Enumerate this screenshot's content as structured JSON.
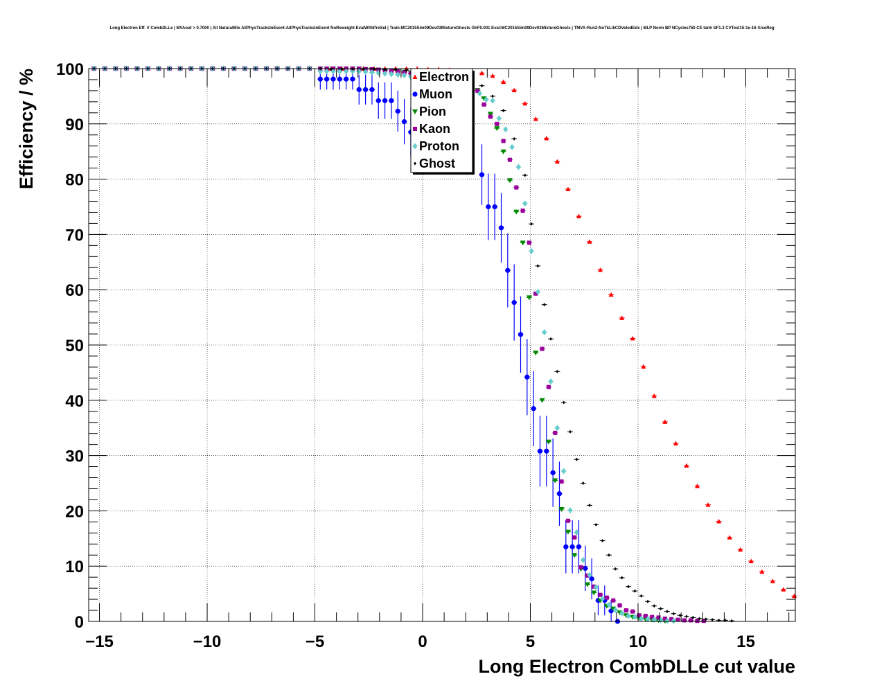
{
  "chart_data": {
    "type": "scatter",
    "title": "Long Electron Eff. V CombDLLe | MVAout > 0.7000 | All NaturalMix AllPhysTracksInEvent:AllPhysTracksInEvent NoReweight EvalWithPreSel | Train:MC2015Sim09Dev03MixtureGhosts GhF0.001 Eval:MC2015Sim09Dev03MixtureGhosts | TMVA-Run2-NoTkLikCDVelodEdx | MLP Norm BP NCycles750 CE tanh SF1.3 CVTest15:1e-16 !UseReg",
    "xlabel": "Long Electron CombDLLe cut value",
    "ylabel": "Efficiency / %",
    "xlim": [
      -15.5,
      17.3
    ],
    "ylim": [
      0,
      100
    ],
    "xticks": [
      -15,
      -10,
      -5,
      0,
      5,
      10,
      15
    ],
    "xtick_labels": [
      "−15",
      "−10",
      "−5",
      "0",
      "5",
      "10",
      "15"
    ],
    "yticks": [
      0,
      10,
      20,
      30,
      40,
      50,
      60,
      70,
      80,
      90,
      100
    ],
    "ytick_labels": [
      "0",
      "10",
      "20",
      "30",
      "40",
      "50",
      "60",
      "70",
      "80",
      "90",
      "100"
    ],
    "grid": true,
    "legend_position": "top-center",
    "series": [
      {
        "name": "Electron",
        "color": "#ff0000",
        "marker": "triangle-up",
        "x": [
          -15.25,
          -14.75,
          -14.25,
          -13.75,
          -13.25,
          -12.75,
          -12.25,
          -11.75,
          -11.25,
          -10.75,
          -10.25,
          -9.75,
          -9.25,
          -8.75,
          -8.25,
          -7.75,
          -7.25,
          -6.75,
          -6.25,
          -5.75,
          -5.25,
          -4.75,
          -4.25,
          -3.75,
          -3.25,
          -2.75,
          -2.25,
          -1.75,
          -1.25,
          -0.75,
          -0.25,
          0.25,
          0.75,
          1.25,
          1.75,
          2.25,
          2.75,
          3.25,
          3.75,
          4.25,
          4.75,
          5.25,
          5.75,
          6.25,
          6.75,
          7.25,
          7.75,
          8.25,
          8.75,
          9.25,
          9.75,
          10.25,
          10.75,
          11.25,
          11.75,
          12.25,
          12.75,
          13.25,
          13.75,
          14.25,
          14.75,
          15.25,
          15.75,
          16.25,
          16.75,
          17.25
        ],
        "y": [
          100,
          100,
          100,
          100,
          100,
          100,
          100,
          100,
          100,
          100,
          100,
          100,
          100,
          100,
          100,
          100,
          100,
          100,
          100,
          100,
          100,
          100,
          100,
          100,
          100,
          100,
          100,
          100,
          100,
          100,
          100,
          99.9,
          99.9,
          99.8,
          99.7,
          99.5,
          99.2,
          98.7,
          97.6,
          96.1,
          93.7,
          90.9,
          87.4,
          83.2,
          78.2,
          73.3,
          68.7,
          63.6,
          59.1,
          54.9,
          51.2,
          46.1,
          40.8,
          36.1,
          32.2,
          28.2,
          24.5,
          21.1,
          18.1,
          15.2,
          13.0,
          10.9,
          9.0,
          7.3,
          5.8,
          4.6
        ]
      },
      {
        "name": "Muon",
        "color": "#0000ff",
        "marker": "circle",
        "x": [
          -15.25,
          -14.75,
          -14.25,
          -13.75,
          -13.25,
          -12.75,
          -12.25,
          -11.75,
          -11.25,
          -10.75,
          -10.25,
          -9.75,
          -9.25,
          -8.75,
          -8.25,
          -7.75,
          -7.25,
          -6.75,
          -6.25,
          -5.75,
          -5.25,
          -4.75,
          -4.45,
          -4.15,
          -3.85,
          -3.55,
          -3.25,
          -2.95,
          -2.65,
          -2.35,
          -2.05,
          -1.75,
          -1.45,
          -1.15,
          -0.85,
          -0.55,
          2.75,
          3.05,
          3.35,
          3.65,
          3.95,
          4.25,
          4.55,
          4.85,
          5.15,
          5.45,
          5.75,
          6.05,
          6.35,
          6.65,
          6.95,
          7.25,
          7.55,
          7.85,
          8.15,
          8.45,
          8.75,
          9.05
        ],
        "y": [
          100,
          100,
          100,
          100,
          100,
          100,
          100,
          100,
          100,
          100,
          100,
          100,
          100,
          100,
          100,
          100,
          100,
          100,
          100,
          100,
          100,
          98.1,
          98.1,
          98.1,
          98.1,
          98.1,
          98.1,
          96.2,
          96.2,
          96.2,
          94.2,
          94.2,
          94.2,
          92.3,
          90.4,
          88.5,
          80.8,
          75.0,
          75.0,
          71.2,
          63.5,
          57.7,
          51.9,
          44.2,
          38.5,
          30.8,
          30.8,
          26.9,
          23.1,
          13.5,
          13.5,
          13.5,
          9.6,
          7.7,
          3.8,
          3.8,
          1.9,
          0.0
        ],
        "yerr": [
          0,
          0,
          0,
          0,
          0,
          0,
          0,
          0,
          0,
          0,
          0,
          0,
          0,
          0,
          0,
          0,
          0,
          0,
          0,
          0,
          0,
          1.9,
          1.9,
          1.9,
          1.9,
          1.9,
          1.9,
          2.7,
          2.7,
          2.7,
          3.3,
          3.3,
          3.3,
          3.7,
          4.1,
          4.4,
          5.5,
          6.0,
          6.0,
          6.3,
          6.7,
          6.9,
          6.9,
          6.9,
          6.8,
          6.4,
          6.4,
          6.2,
          5.8,
          4.8,
          4.8,
          4.8,
          4.1,
          3.7,
          2.7,
          2.7,
          1.9,
          0.0
        ]
      },
      {
        "name": "Pion",
        "color": "#008800",
        "marker": "triangle-down",
        "x": [
          -15.25,
          -14.75,
          -14.25,
          -13.75,
          -13.25,
          -12.75,
          -12.25,
          -11.75,
          -11.25,
          -10.75,
          -10.25,
          -9.75,
          -9.25,
          -8.75,
          -8.25,
          -7.75,
          -7.25,
          -6.75,
          -6.25,
          -5.75,
          -5.25,
          -4.75,
          -4.45,
          -4.15,
          -3.85,
          -3.55,
          -3.25,
          -2.95,
          -2.65,
          -2.35,
          -2.05,
          -1.75,
          -1.45,
          -1.15,
          -0.85,
          -0.55,
          2.55,
          2.85,
          3.15,
          3.45,
          3.75,
          4.05,
          4.35,
          4.65,
          4.95,
          5.25,
          5.55,
          5.85,
          6.15,
          6.45,
          6.75,
          7.05,
          7.35,
          7.65,
          7.95,
          8.25,
          8.55,
          8.85,
          9.15,
          9.45,
          9.75,
          10.05,
          10.35,
          10.65,
          10.95,
          11.25
        ],
        "y": [
          100,
          100,
          100,
          100,
          100,
          100,
          100,
          100,
          100,
          100,
          100,
          100,
          100,
          100,
          100,
          100,
          100,
          100,
          100,
          100,
          100,
          100,
          100,
          100,
          100,
          100,
          100,
          100,
          99.9,
          99.8,
          99.8,
          99.7,
          99.6,
          99.5,
          99.4,
          99.2,
          96.1,
          94.6,
          91.8,
          89.2,
          85.0,
          79.8,
          74.1,
          68.5,
          58.6,
          48.6,
          40.0,
          32.5,
          25.5,
          20.3,
          16.2,
          12.0,
          9.5,
          6.7,
          5.2,
          3.8,
          2.8,
          2.3,
          1.6,
          1.1,
          0.8,
          0.6,
          0.4,
          0.3,
          0.2,
          0.1
        ]
      },
      {
        "name": "Kaon",
        "color": "#990099",
        "marker": "square",
        "x": [
          -15.25,
          -14.75,
          -14.25,
          -13.75,
          -13.25,
          -12.75,
          -12.25,
          -11.75,
          -11.25,
          -10.75,
          -10.25,
          -9.75,
          -9.25,
          -8.75,
          -8.25,
          -7.75,
          -7.25,
          -6.75,
          -6.25,
          -5.75,
          -5.25,
          -4.75,
          -4.45,
          -4.15,
          -3.85,
          -3.55,
          -3.25,
          -2.95,
          -2.65,
          -2.35,
          -2.05,
          -1.75,
          -1.45,
          -1.15,
          -0.85,
          -0.55,
          2.55,
          2.85,
          3.15,
          3.45,
          3.75,
          4.05,
          4.35,
          4.65,
          4.95,
          5.25,
          5.55,
          5.85,
          6.15,
          6.45,
          6.75,
          7.05,
          7.35,
          7.65,
          7.95,
          8.25,
          8.55,
          8.85,
          9.15,
          9.45,
          9.75,
          10.05,
          10.35,
          10.65,
          10.95,
          11.25,
          11.55,
          11.85,
          12.15,
          12.45,
          12.75,
          13.05
        ],
        "y": [
          100,
          100,
          100,
          100,
          100,
          100,
          100,
          100,
          100,
          100,
          100,
          100,
          100,
          100,
          100,
          100,
          100,
          100,
          100,
          100,
          100,
          100,
          100,
          100,
          100,
          100,
          100,
          100,
          99.9,
          99.9,
          99.8,
          99.7,
          99.6,
          99.5,
          99.3,
          99.1,
          96.0,
          93.5,
          91.3,
          90.0,
          86.9,
          83.5,
          78.5,
          74.3,
          68.5,
          59.3,
          49.3,
          42.4,
          34.1,
          25.3,
          18.2,
          15.2,
          9.8,
          8.3,
          6.3,
          4.8,
          4.3,
          3.8,
          2.9,
          2.0,
          1.8,
          1.1,
          1.0,
          0.8,
          0.7,
          0.5,
          0.4,
          0.3,
          0.2,
          0.2,
          0.1,
          0.1
        ]
      },
      {
        "name": "Proton",
        "color": "#66cccc",
        "marker": "diamond",
        "x": [
          -15.25,
          -14.75,
          -14.25,
          -13.75,
          -13.25,
          -12.75,
          -12.25,
          -11.75,
          -11.25,
          -10.75,
          -10.25,
          -9.75,
          -9.25,
          -8.75,
          -8.25,
          -7.75,
          -7.25,
          -6.75,
          -6.25,
          -5.75,
          -5.25,
          -4.75,
          -4.45,
          -4.15,
          -3.85,
          -3.55,
          -3.25,
          -2.95,
          -2.65,
          -2.35,
          -2.05,
          -1.75,
          -1.45,
          -1.15,
          -0.85,
          -0.55,
          2.65,
          2.95,
          3.25,
          3.55,
          3.85,
          4.15,
          4.45,
          4.75,
          5.05,
          5.35,
          5.65,
          5.95,
          6.25,
          6.55,
          6.85,
          7.15,
          7.45,
          7.75,
          8.05,
          8.35,
          8.65,
          8.95,
          9.25,
          9.55,
          9.85,
          10.15,
          10.45,
          10.75,
          11.05,
          11.35,
          11.65
        ],
        "y": [
          100,
          100,
          100,
          100,
          100,
          100,
          100,
          100,
          100,
          100,
          100,
          100,
          100,
          100,
          100,
          100,
          100,
          100,
          100,
          100,
          100,
          99.5,
          99.5,
          99.5,
          99.5,
          99.5,
          99.5,
          99.5,
          99.4,
          99.3,
          99.2,
          99.1,
          99.0,
          98.9,
          98.8,
          98.5,
          95.5,
          94.4,
          94.2,
          91.0,
          89.0,
          85.8,
          82.2,
          75.6,
          67.0,
          59.6,
          52.3,
          43.4,
          35.0,
          27.2,
          20.1,
          16.1,
          11.1,
          8.4,
          6.2,
          4.1,
          3.0,
          2.1,
          1.5,
          1.0,
          0.8,
          0.5,
          0.4,
          0.3,
          0.2,
          0.1,
          0.1
        ]
      },
      {
        "name": "Ghost",
        "color": "#000000",
        "marker": "diamond-small",
        "x": [
          -15.25,
          -14.75,
          -14.25,
          -13.75,
          -13.25,
          -12.75,
          -12.25,
          -11.75,
          -11.25,
          -10.75,
          -10.25,
          -9.75,
          -9.25,
          -8.75,
          -8.25,
          -7.75,
          -7.25,
          -6.75,
          -6.25,
          -5.75,
          -5.25,
          -4.75,
          -4.25,
          -3.75,
          -3.25,
          -2.75,
          -2.25,
          -1.75,
          -1.25,
          -0.75,
          -0.25,
          0.25,
          0.75,
          1.25,
          1.75,
          2.25,
          2.75,
          3.25,
          3.75,
          4.25,
          4.75,
          5.05,
          5.35,
          5.65,
          5.95,
          6.25,
          6.55,
          6.85,
          7.15,
          7.45,
          7.75,
          8.05,
          8.35,
          8.65,
          8.95,
          9.25,
          9.55,
          9.85,
          10.15,
          10.45,
          10.75,
          11.05,
          11.35,
          11.65,
          11.95,
          12.25,
          12.55,
          12.85,
          13.15,
          13.45,
          13.75,
          14.05,
          14.35
        ],
        "y": [
          100,
          100,
          100,
          100,
          100,
          100,
          100,
          100,
          100,
          100,
          100,
          100,
          100,
          100,
          100,
          100,
          100,
          100,
          100,
          100,
          100,
          100,
          99.9,
          99.9,
          99.9,
          99.9,
          99.9,
          99.8,
          99.8,
          99.7,
          99.6,
          99.5,
          99.3,
          99.0,
          98.6,
          97.9,
          96.9,
          95.0,
          92.4,
          87.3,
          80.7,
          71.9,
          64.3,
          57.3,
          51.1,
          45.2,
          39.6,
          34.3,
          29.3,
          25.0,
          21.0,
          17.5,
          14.6,
          12.0,
          9.5,
          7.9,
          6.3,
          5.5,
          4.6,
          3.6,
          2.8,
          2.3,
          1.8,
          1.4,
          1.1,
          0.9,
          0.7,
          0.5,
          0.4,
          0.3,
          0.2,
          0.2,
          0.1
        ]
      }
    ]
  }
}
